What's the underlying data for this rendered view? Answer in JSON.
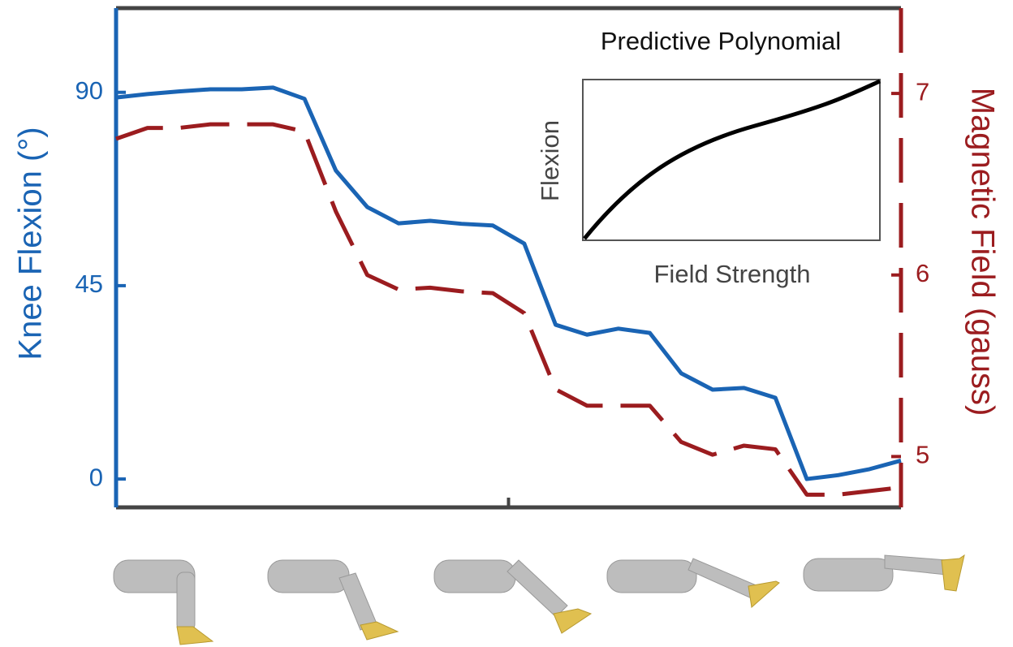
{
  "chart_data": {
    "type": "line",
    "y_label": "Knee Flexion (°)",
    "y2_label": "Magnetic Field (gauss)",
    "x": [
      0,
      4,
      8,
      12,
      16,
      20,
      24,
      28,
      32,
      36,
      40,
      44,
      48,
      52,
      56,
      60,
      64,
      68,
      72,
      76,
      80,
      84,
      88,
      92,
      96,
      100
    ],
    "xlim": [
      0,
      100
    ],
    "xticks": [
      50
    ],
    "ylim": [
      -6.6,
      109.6
    ],
    "yticks": [
      0,
      45,
      90
    ],
    "y2lim": [
      4.72,
      7.47
    ],
    "y2ticks": [
      5,
      6,
      7
    ],
    "series": [
      {
        "name": "Knee Flexion",
        "color": "#1a64b4",
        "values": [
          88.8,
          89.6,
          90.2,
          90.7,
          90.7,
          91.1,
          88.5,
          71.8,
          63.3,
          59.5,
          60.1,
          59.4,
          59.0,
          54.8,
          35.9,
          33.6,
          35.0,
          34.0,
          24.6,
          20.8,
          21.2,
          18.9,
          0,
          0.9,
          2.3,
          4.3
        ]
      },
      {
        "name": "Magnetic Field",
        "color": "#9b1c1f",
        "axis": "y2",
        "values": [
          6.75,
          6.81,
          6.81,
          6.83,
          6.83,
          6.83,
          6.79,
          6.35,
          6.0,
          5.92,
          5.93,
          5.91,
          5.9,
          5.79,
          5.37,
          5.28,
          5.28,
          5.28,
          5.08,
          5.01,
          5.06,
          5.04,
          4.79,
          4.79,
          4.81,
          4.83
        ]
      }
    ],
    "inset": {
      "title": "Predictive Polynomial",
      "x_label": "Field Strength",
      "y_label": "Flexion"
    }
  }
}
